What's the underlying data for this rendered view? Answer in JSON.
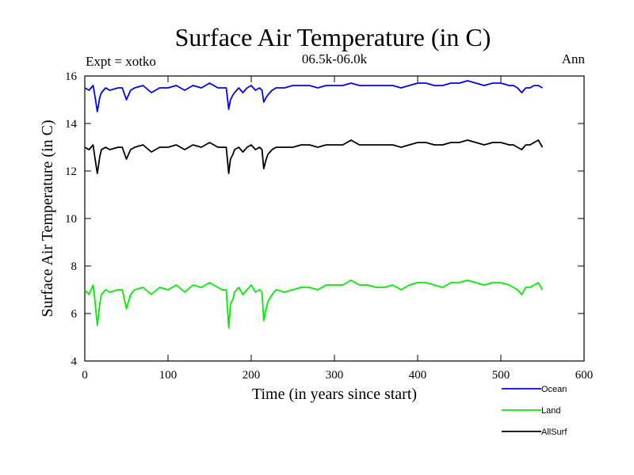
{
  "chart_data": {
    "type": "line",
    "title": "Surface Air Temperature (in C)",
    "subtitle_left": "Expt = xotko",
    "subtitle_center": "06.5k-06.0k",
    "subtitle_right": "Ann",
    "xlabel": "Time (in years since start)",
    "ylabel": "Surface Air Temperature (in C)",
    "xlim": [
      0,
      600
    ],
    "ylim": [
      4,
      16
    ],
    "xticks": [
      0,
      100,
      200,
      300,
      400,
      500,
      600
    ],
    "yticks": [
      4,
      6,
      8,
      10,
      12,
      14,
      16
    ],
    "legend_position": "bottom-right, below plot",
    "series": [
      {
        "name": "Ocean",
        "color": "#0000ff",
        "x": [
          0,
          5,
          10,
          12,
          15,
          18,
          20,
          25,
          30,
          40,
          45,
          50,
          55,
          60,
          70,
          80,
          90,
          100,
          110,
          120,
          130,
          140,
          150,
          160,
          165,
          170,
          173,
          175,
          178,
          180,
          185,
          190,
          195,
          200,
          205,
          210,
          213,
          215,
          218,
          220,
          225,
          230,
          240,
          250,
          260,
          270,
          280,
          290,
          300,
          310,
          320,
          330,
          340,
          350,
          360,
          370,
          380,
          390,
          400,
          410,
          420,
          430,
          440,
          450,
          460,
          470,
          480,
          490,
          500,
          510,
          515,
          520,
          525,
          530,
          535,
          540,
          545,
          550
        ],
        "values": [
          15.5,
          15.4,
          15.6,
          15.2,
          14.5,
          15.1,
          15.3,
          15.5,
          15.4,
          15.5,
          15.5,
          15.0,
          15.4,
          15.5,
          15.6,
          15.3,
          15.5,
          15.5,
          15.6,
          15.4,
          15.6,
          15.5,
          15.7,
          15.5,
          15.5,
          15.5,
          14.6,
          15.0,
          15.2,
          15.3,
          15.5,
          15.3,
          15.5,
          15.6,
          15.4,
          15.5,
          15.4,
          14.9,
          15.1,
          15.2,
          15.4,
          15.5,
          15.5,
          15.6,
          15.6,
          15.6,
          15.5,
          15.6,
          15.6,
          15.6,
          15.7,
          15.6,
          15.6,
          15.6,
          15.6,
          15.6,
          15.5,
          15.6,
          15.7,
          15.7,
          15.6,
          15.6,
          15.7,
          15.7,
          15.8,
          15.7,
          15.6,
          15.7,
          15.7,
          15.6,
          15.6,
          15.5,
          15.3,
          15.5,
          15.5,
          15.6,
          15.6,
          15.5
        ]
      },
      {
        "name": "Land",
        "color": "#00ee00",
        "x": [
          0,
          5,
          10,
          12,
          15,
          18,
          20,
          25,
          30,
          40,
          45,
          50,
          55,
          60,
          70,
          80,
          90,
          100,
          110,
          120,
          130,
          140,
          150,
          160,
          165,
          170,
          173,
          175,
          178,
          180,
          185,
          190,
          195,
          200,
          205,
          210,
          213,
          215,
          218,
          220,
          225,
          230,
          240,
          250,
          260,
          270,
          280,
          290,
          300,
          310,
          320,
          330,
          340,
          350,
          360,
          370,
          380,
          390,
          400,
          410,
          420,
          430,
          440,
          450,
          460,
          470,
          480,
          490,
          500,
          510,
          515,
          520,
          525,
          530,
          535,
          540,
          545,
          550
        ],
        "values": [
          7.0,
          6.8,
          7.2,
          6.6,
          5.5,
          6.4,
          6.8,
          7.0,
          6.9,
          7.0,
          7.0,
          6.2,
          6.8,
          7.0,
          7.1,
          6.8,
          7.1,
          7.0,
          7.2,
          6.9,
          7.2,
          7.1,
          7.3,
          7.1,
          7.0,
          7.0,
          5.4,
          6.4,
          6.6,
          6.9,
          7.1,
          6.8,
          7.0,
          7.2,
          6.9,
          7.0,
          6.9,
          5.7,
          6.2,
          6.5,
          6.8,
          7.0,
          6.9,
          7.0,
          7.1,
          7.1,
          7.0,
          7.2,
          7.2,
          7.2,
          7.4,
          7.2,
          7.2,
          7.1,
          7.1,
          7.2,
          7.0,
          7.2,
          7.3,
          7.3,
          7.2,
          7.1,
          7.3,
          7.3,
          7.4,
          7.3,
          7.2,
          7.3,
          7.3,
          7.2,
          7.1,
          7.0,
          6.8,
          7.1,
          7.1,
          7.2,
          7.3,
          7.0
        ]
      },
      {
        "name": "AllSurf",
        "color": "#000000",
        "x": [
          0,
          5,
          10,
          12,
          15,
          18,
          20,
          25,
          30,
          40,
          45,
          50,
          55,
          60,
          70,
          80,
          90,
          100,
          110,
          120,
          130,
          140,
          150,
          160,
          165,
          170,
          173,
          175,
          178,
          180,
          185,
          190,
          195,
          200,
          205,
          210,
          213,
          215,
          218,
          220,
          225,
          230,
          240,
          250,
          260,
          270,
          280,
          290,
          300,
          310,
          320,
          330,
          340,
          350,
          360,
          370,
          380,
          390,
          400,
          410,
          420,
          430,
          440,
          450,
          460,
          470,
          480,
          490,
          500,
          510,
          515,
          520,
          525,
          530,
          535,
          540,
          545,
          550
        ],
        "values": [
          13.0,
          12.9,
          13.1,
          12.6,
          11.9,
          12.6,
          12.9,
          13.0,
          12.9,
          13.0,
          13.0,
          12.5,
          12.9,
          13.0,
          13.1,
          12.8,
          13.0,
          13.0,
          13.1,
          12.9,
          13.1,
          13.0,
          13.2,
          13.0,
          13.0,
          13.0,
          11.9,
          12.5,
          12.7,
          12.9,
          13.0,
          12.8,
          13.0,
          13.1,
          12.9,
          13.0,
          12.9,
          12.1,
          12.5,
          12.7,
          12.9,
          13.0,
          13.0,
          13.0,
          13.1,
          13.1,
          13.0,
          13.1,
          13.1,
          13.1,
          13.3,
          13.1,
          13.1,
          13.1,
          13.1,
          13.1,
          13.0,
          13.1,
          13.2,
          13.2,
          13.1,
          13.1,
          13.2,
          13.2,
          13.3,
          13.2,
          13.1,
          13.2,
          13.2,
          13.1,
          13.1,
          13.0,
          12.9,
          13.1,
          13.1,
          13.2,
          13.3,
          13.0
        ]
      }
    ]
  }
}
